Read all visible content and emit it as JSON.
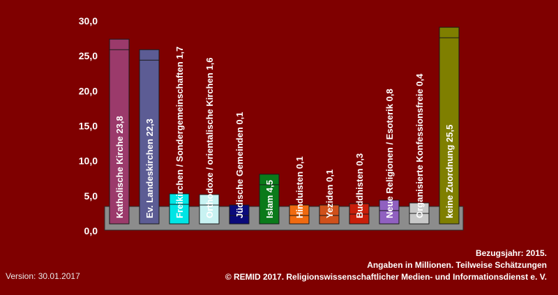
{
  "chart_data": {
    "type": "bar",
    "title": "",
    "xlabel": "",
    "ylabel": "",
    "ylim": [
      0,
      30
    ],
    "yticks": [
      "0,0",
      "5,0",
      "10,0",
      "15,0",
      "20,0",
      "25,0",
      "30,0"
    ],
    "grid": false,
    "legend": "none",
    "categories": [
      "Katholische Kirche 23,8",
      "Ev. Landeskirchen 22,3",
      "Freikirchen / Sondergemeinschaften 1,7",
      "Orthodoxe / orientalische Kirchen 1,6",
      "Jüdische Gemeinden 0,1",
      "Islam 4,5",
      "Hinduisten 0,1",
      "Yeziden 0,1",
      "Buddhisten 0,3",
      "Neue Religionen / Esoterik 0,8",
      "Organisierte Konfessionsfreie 0,4",
      "keine Zuordnung 25,5"
    ],
    "values": [
      23.8,
      22.3,
      1.7,
      1.6,
      0.1,
      4.5,
      0.1,
      0.1,
      0.3,
      0.8,
      0.4,
      25.5
    ],
    "colors": [
      "#9b3a6b",
      "#5c5c94",
      "#00e5e5",
      "#c8f2f2",
      "#0a0a7a",
      "#0a7a1a",
      "#f06a10",
      "#d0501a",
      "#c81e0a",
      "#9060c0",
      "#c8c8c8",
      "#7f7f00"
    ]
  },
  "footer": {
    "line1": "Bezugsjahr: 2015.",
    "line2": "Angaben in Millionen. Teilweise Schätzungen",
    "line3": "© REMID 2017. Religionswissenschaftlicher Medien- und Informationsdienst e. V.",
    "version": "Version: 30.01.2017"
  }
}
